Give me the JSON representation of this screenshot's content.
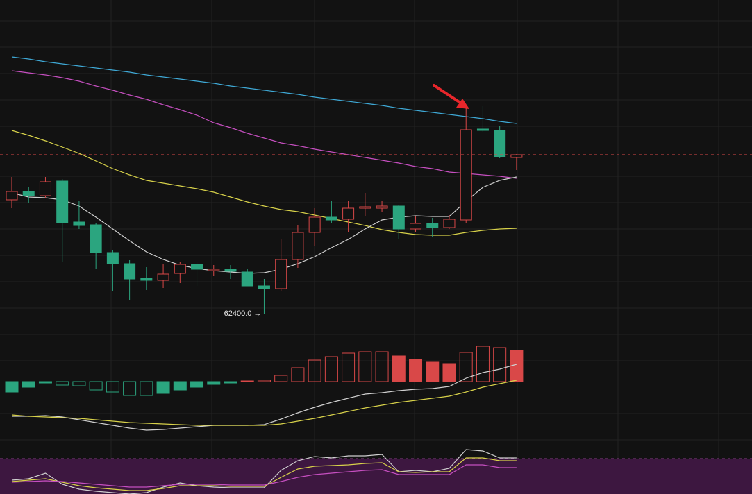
{
  "chart_data": [
    {
      "type": "candlestick",
      "categories": [
        null,
        null,
        null,
        null,
        null,
        null,
        null,
        null,
        null,
        null,
        null,
        null,
        null,
        null,
        null,
        null,
        null,
        null,
        null,
        null,
        null,
        null,
        null,
        null,
        null,
        null,
        null,
        null,
        null,
        null,
        null
      ],
      "open": [
        64040,
        64160,
        64100,
        64310,
        63720,
        63680,
        63280,
        63120,
        62910,
        62880,
        62980,
        63110,
        63020,
        63040,
        63000,
        62800,
        62760,
        63180,
        63570,
        63790,
        63760,
        63920,
        63920,
        63950,
        63620,
        63700,
        63640,
        63750,
        65060,
        65040,
        64650
      ],
      "high": [
        64370,
        64220,
        64370,
        64340,
        64020,
        63700,
        63320,
        63170,
        63070,
        63120,
        63140,
        63140,
        63100,
        63100,
        63040,
        62900,
        63470,
        63670,
        63920,
        64020,
        64020,
        64140,
        64020,
        63960,
        63800,
        63780,
        63820,
        65370,
        65390,
        65100,
        64700
      ],
      "low": [
        63920,
        64000,
        64070,
        63150,
        63620,
        63050,
        62720,
        62600,
        62740,
        62770,
        62840,
        62800,
        62940,
        62900,
        62800,
        62400,
        62720,
        63060,
        63370,
        63700,
        63570,
        63800,
        63870,
        63470,
        63570,
        63500,
        63620,
        63700,
        65020,
        64640,
        64470
      ],
      "close": [
        64160,
        64100,
        64300,
        63710,
        63670,
        63280,
        63120,
        62900,
        62880,
        62970,
        63110,
        63040,
        63040,
        63010,
        62800,
        62760,
        63180,
        63570,
        63790,
        63750,
        63920,
        63940,
        63950,
        63620,
        63700,
        63640,
        63760,
        65050,
        65040,
        64660,
        64690
      ],
      "up_color": "#d94848",
      "down_color": "#2ba57f",
      "series": [
        {
          "color": "#3fa9d6",
          "values": [
            66100,
            66070,
            66030,
            66000,
            65970,
            65940,
            65910,
            65880,
            65840,
            65810,
            65780,
            65750,
            65720,
            65680,
            65650,
            65620,
            65590,
            65560,
            65520,
            65490,
            65460,
            65430,
            65400,
            65360,
            65330,
            65300,
            65270,
            65240,
            65210,
            65170,
            65140
          ]
        },
        {
          "color": "#c64fc0",
          "values": [
            65900,
            65870,
            65840,
            65800,
            65750,
            65680,
            65620,
            65550,
            65490,
            65410,
            65340,
            65260,
            65150,
            65080,
            65000,
            64930,
            64860,
            64820,
            64770,
            64730,
            64690,
            64650,
            64610,
            64570,
            64520,
            64490,
            64440,
            64420,
            64400,
            64380,
            64350
          ]
        },
        {
          "color": "#d8d24a",
          "values": [
            65040,
            64970,
            64890,
            64800,
            64710,
            64600,
            64490,
            64400,
            64320,
            64280,
            64240,
            64200,
            64150,
            64080,
            64010,
            63950,
            63900,
            63870,
            63820,
            63770,
            63720,
            63670,
            63610,
            63570,
            63540,
            63530,
            63530,
            63570,
            63600,
            63620,
            63630
          ]
        },
        {
          "color": "#cfcfcf",
          "values": [
            64140,
            64080,
            64070,
            64040,
            63950,
            63790,
            63620,
            63450,
            63290,
            63180,
            63100,
            63050,
            63020,
            63000,
            62980,
            62990,
            63040,
            63120,
            63220,
            63350,
            63470,
            63620,
            63750,
            63790,
            63810,
            63800,
            63800,
            64020,
            64220,
            64320,
            64370
          ]
        }
      ],
      "ylim": [
        62120,
        66920
      ],
      "annotation": "62400.0 →",
      "price_line": 64690
    },
    {
      "type": "bar",
      "values": [
        -15,
        -8,
        -2,
        -5,
        -6,
        -12,
        -15,
        -20,
        -20,
        -17,
        -12,
        -8,
        -4,
        -2,
        1,
        2,
        9,
        20,
        31,
        36,
        41,
        43,
        43,
        37,
        32,
        28,
        26,
        42,
        51,
        49,
        45
      ],
      "hollow": [
        false,
        false,
        false,
        true,
        true,
        true,
        true,
        true,
        true,
        false,
        false,
        false,
        false,
        false,
        true,
        true,
        true,
        true,
        true,
        true,
        true,
        true,
        true,
        false,
        false,
        false,
        false,
        true,
        true,
        true,
        false
      ],
      "up_color": "#d94848",
      "down_color": "#2ba57f",
      "series": [
        {
          "color": "#d0d0d0",
          "values": [
            -50,
            -50,
            -49,
            -51,
            -55,
            -59,
            -63,
            -67,
            -70,
            -69,
            -67,
            -65,
            -63,
            -63,
            -63,
            -62,
            -54,
            -45,
            -37,
            -30,
            -24,
            -18,
            -16,
            -13,
            -11,
            -10,
            -7,
            5,
            13,
            18,
            25
          ]
        },
        {
          "color": "#d8d24a",
          "values": [
            -48,
            -50,
            -51,
            -52,
            -53,
            -55,
            -57,
            -59,
            -60,
            -61,
            -62,
            -63,
            -63,
            -63,
            -63,
            -63,
            -61,
            -57,
            -53,
            -48,
            -43,
            -38,
            -34,
            -30,
            -27,
            -24,
            -21,
            -15,
            -8,
            -3,
            2
          ]
        }
      ],
      "ylim": [
        -100,
        70
      ]
    },
    {
      "type": "line",
      "series": [
        {
          "color": "#d0d0d0",
          "values": [
            20,
            22,
            30,
            14,
            7,
            4,
            2,
            0,
            2,
            10,
            16,
            12,
            10,
            9,
            9,
            9,
            34,
            48,
            54,
            52,
            55,
            55,
            57,
            32,
            34,
            32,
            37,
            64,
            62,
            52,
            52
          ]
        },
        {
          "color": "#d8d24a",
          "values": [
            18,
            20,
            22,
            17,
            12,
            9,
            7,
            5,
            5,
            8,
            12,
            12,
            12,
            11,
            11,
            11,
            24,
            36,
            40,
            41,
            42,
            44,
            45,
            32,
            31,
            32,
            32,
            52,
            52,
            48,
            48
          ]
        },
        {
          "color": "#c64fc0",
          "values": [
            17,
            18,
            19,
            18,
            16,
            14,
            12,
            10,
            10,
            12,
            14,
            14,
            14,
            13,
            13,
            13,
            18,
            24,
            28,
            30,
            32,
            34,
            35,
            28,
            28,
            28,
            28,
            42,
            42,
            38,
            38
          ]
        }
      ],
      "band": [
        0,
        51
      ],
      "band_color": "#3d1740",
      "ylim": [
        0,
        66
      ]
    }
  ]
}
